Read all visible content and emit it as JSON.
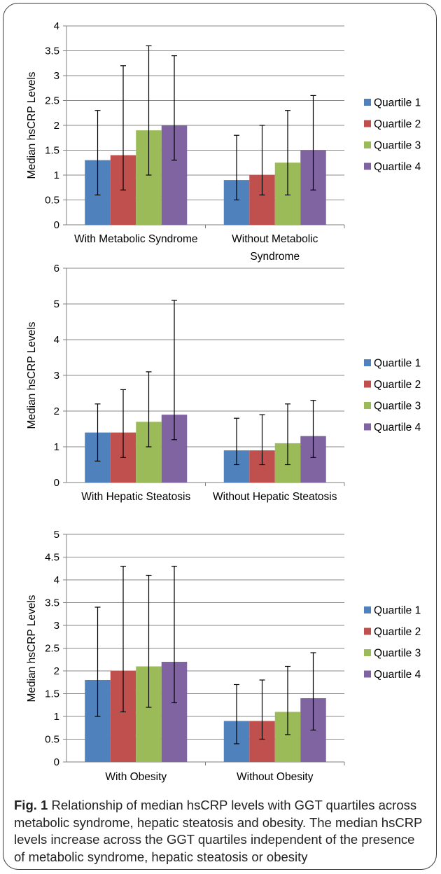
{
  "chart_data": [
    {
      "type": "bar",
      "ylabel": "Median hsCRP Levels",
      "ylim": [
        0,
        4
      ],
      "yticks": [
        0,
        0.5,
        1,
        1.5,
        2,
        2.5,
        3,
        3.5,
        4
      ],
      "ytick_labels": [
        "0",
        "0.5",
        "1",
        "1.5",
        "2",
        "2.5",
        "3",
        "3.5",
        "4"
      ],
      "categories": [
        [
          "With Metabolic Syndrome"
        ],
        [
          "Without Metabolic",
          "Syndrome"
        ]
      ],
      "series": [
        {
          "name": "Quartile 1",
          "values": [
            1.3,
            0.9
          ],
          "err_low": [
            0.6,
            0.5
          ],
          "err_high": [
            2.3,
            1.8
          ]
        },
        {
          "name": "Quartile 2",
          "values": [
            1.4,
            1.0
          ],
          "err_low": [
            0.7,
            0.6
          ],
          "err_high": [
            3.2,
            2.0
          ]
        },
        {
          "name": "Quartile 3",
          "values": [
            1.9,
            1.25
          ],
          "err_low": [
            1.0,
            0.6
          ],
          "err_high": [
            3.6,
            2.3
          ]
        },
        {
          "name": "Quartile 4",
          "values": [
            2.0,
            1.5
          ],
          "err_low": [
            1.3,
            0.7
          ],
          "err_high": [
            3.4,
            2.6
          ]
        }
      ],
      "grid": true,
      "legend": "right"
    },
    {
      "type": "bar",
      "ylabel": "Median hsCRP Levels",
      "ylim": [
        0,
        6
      ],
      "yticks": [
        0,
        1,
        2,
        3,
        4,
        5,
        6
      ],
      "ytick_labels": [
        "0",
        "1",
        "2",
        "3",
        "4",
        "5",
        "6"
      ],
      "categories": [
        [
          "With Hepatic Steatosis"
        ],
        [
          "Without Hepatic Steatosis"
        ]
      ],
      "series": [
        {
          "name": "Quartile 1",
          "values": [
            1.4,
            0.9
          ],
          "err_low": [
            0.6,
            0.5
          ],
          "err_high": [
            2.2,
            1.8
          ]
        },
        {
          "name": "Quartile 2",
          "values": [
            1.4,
            0.9
          ],
          "err_low": [
            0.7,
            0.5
          ],
          "err_high": [
            2.6,
            1.9
          ]
        },
        {
          "name": "Quartile 3",
          "values": [
            1.7,
            1.1
          ],
          "err_low": [
            1.0,
            0.5
          ],
          "err_high": [
            3.1,
            2.2
          ]
        },
        {
          "name": "Quartile 4",
          "values": [
            1.9,
            1.3
          ],
          "err_low": [
            1.2,
            0.7
          ],
          "err_high": [
            5.1,
            2.3
          ]
        }
      ],
      "grid": true,
      "legend": "right"
    },
    {
      "type": "bar",
      "ylabel": "Median hsCRP Levels",
      "ylim": [
        0,
        5
      ],
      "yticks": [
        0,
        0.5,
        1,
        1.5,
        2,
        2.5,
        3,
        3.5,
        4,
        4.5,
        5
      ],
      "ytick_labels": [
        "0",
        "0.5",
        "1",
        "1.5",
        "2",
        "2.5",
        "3",
        "3.5",
        "4",
        "4.5",
        "5"
      ],
      "categories": [
        [
          "With Obesity"
        ],
        [
          "Without Obesity"
        ]
      ],
      "series": [
        {
          "name": "Quartile 1",
          "values": [
            1.8,
            0.9
          ],
          "err_low": [
            1.0,
            0.4
          ],
          "err_high": [
            3.4,
            1.7
          ]
        },
        {
          "name": "Quartile 2",
          "values": [
            2.0,
            0.9
          ],
          "err_low": [
            1.1,
            0.5
          ],
          "err_high": [
            4.3,
            1.8
          ]
        },
        {
          "name": "Quartile 3",
          "values": [
            2.1,
            1.1
          ],
          "err_low": [
            1.2,
            0.6
          ],
          "err_high": [
            4.1,
            2.1
          ]
        },
        {
          "name": "Quartile 4",
          "values": [
            2.2,
            1.4
          ],
          "err_low": [
            1.3,
            0.7
          ],
          "err_high": [
            4.3,
            2.4
          ]
        }
      ],
      "grid": true,
      "legend": "right"
    }
  ],
  "colors": {
    "Quartile 1": "#4f81bd",
    "Quartile 2": "#c0504d",
    "Quartile 3": "#9bbb59",
    "Quartile 4": "#8064a2",
    "grid": "#8a8a8a",
    "axis": "#7f7f7f"
  },
  "caption": {
    "lead": "Fig. 1",
    "text": " Relationship of median hsCRP levels with GGT quartiles across metabolic syndrome, hepatic steatosis and obesity. The median hsCRP levels increase across the GGT quartiles independent of the presence of metabolic syndrome, hepatic steatosis or obesity"
  }
}
